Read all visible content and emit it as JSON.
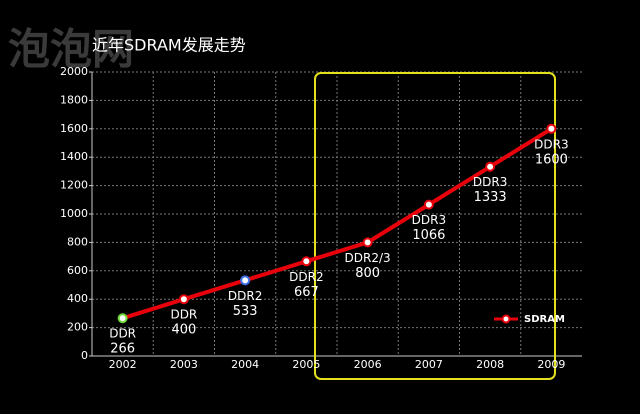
{
  "chart_data": {
    "type": "line",
    "title": "近年SDRAM发展走势",
    "watermark": "泡泡网",
    "categories": [
      "2002",
      "2003",
      "2004",
      "2005",
      "2006",
      "2007",
      "2008",
      "2009"
    ],
    "series": [
      {
        "name": "SDRAM",
        "color": "#e8000b",
        "values": [
          266,
          400,
          533,
          667,
          800,
          1066,
          1333,
          1600
        ],
        "annotations": [
          "DDR",
          "DDR",
          "DDR2",
          "DDR2",
          "DDR2/3",
          "DDR3",
          "DDR3",
          "DDR3"
        ],
        "marker_colors": [
          "#6fd63a",
          "#e8000b",
          "#3f6fe8",
          "#e8000b",
          "#e8000b",
          "#e8000b",
          "#e8000b",
          "#e8000b"
        ]
      }
    ],
    "ylim": [
      0,
      2000
    ],
    "yticks": [
      0,
      200,
      400,
      600,
      800,
      1000,
      1200,
      1400,
      1600,
      1800,
      2000
    ],
    "grid": true,
    "legend": "lower right"
  }
}
